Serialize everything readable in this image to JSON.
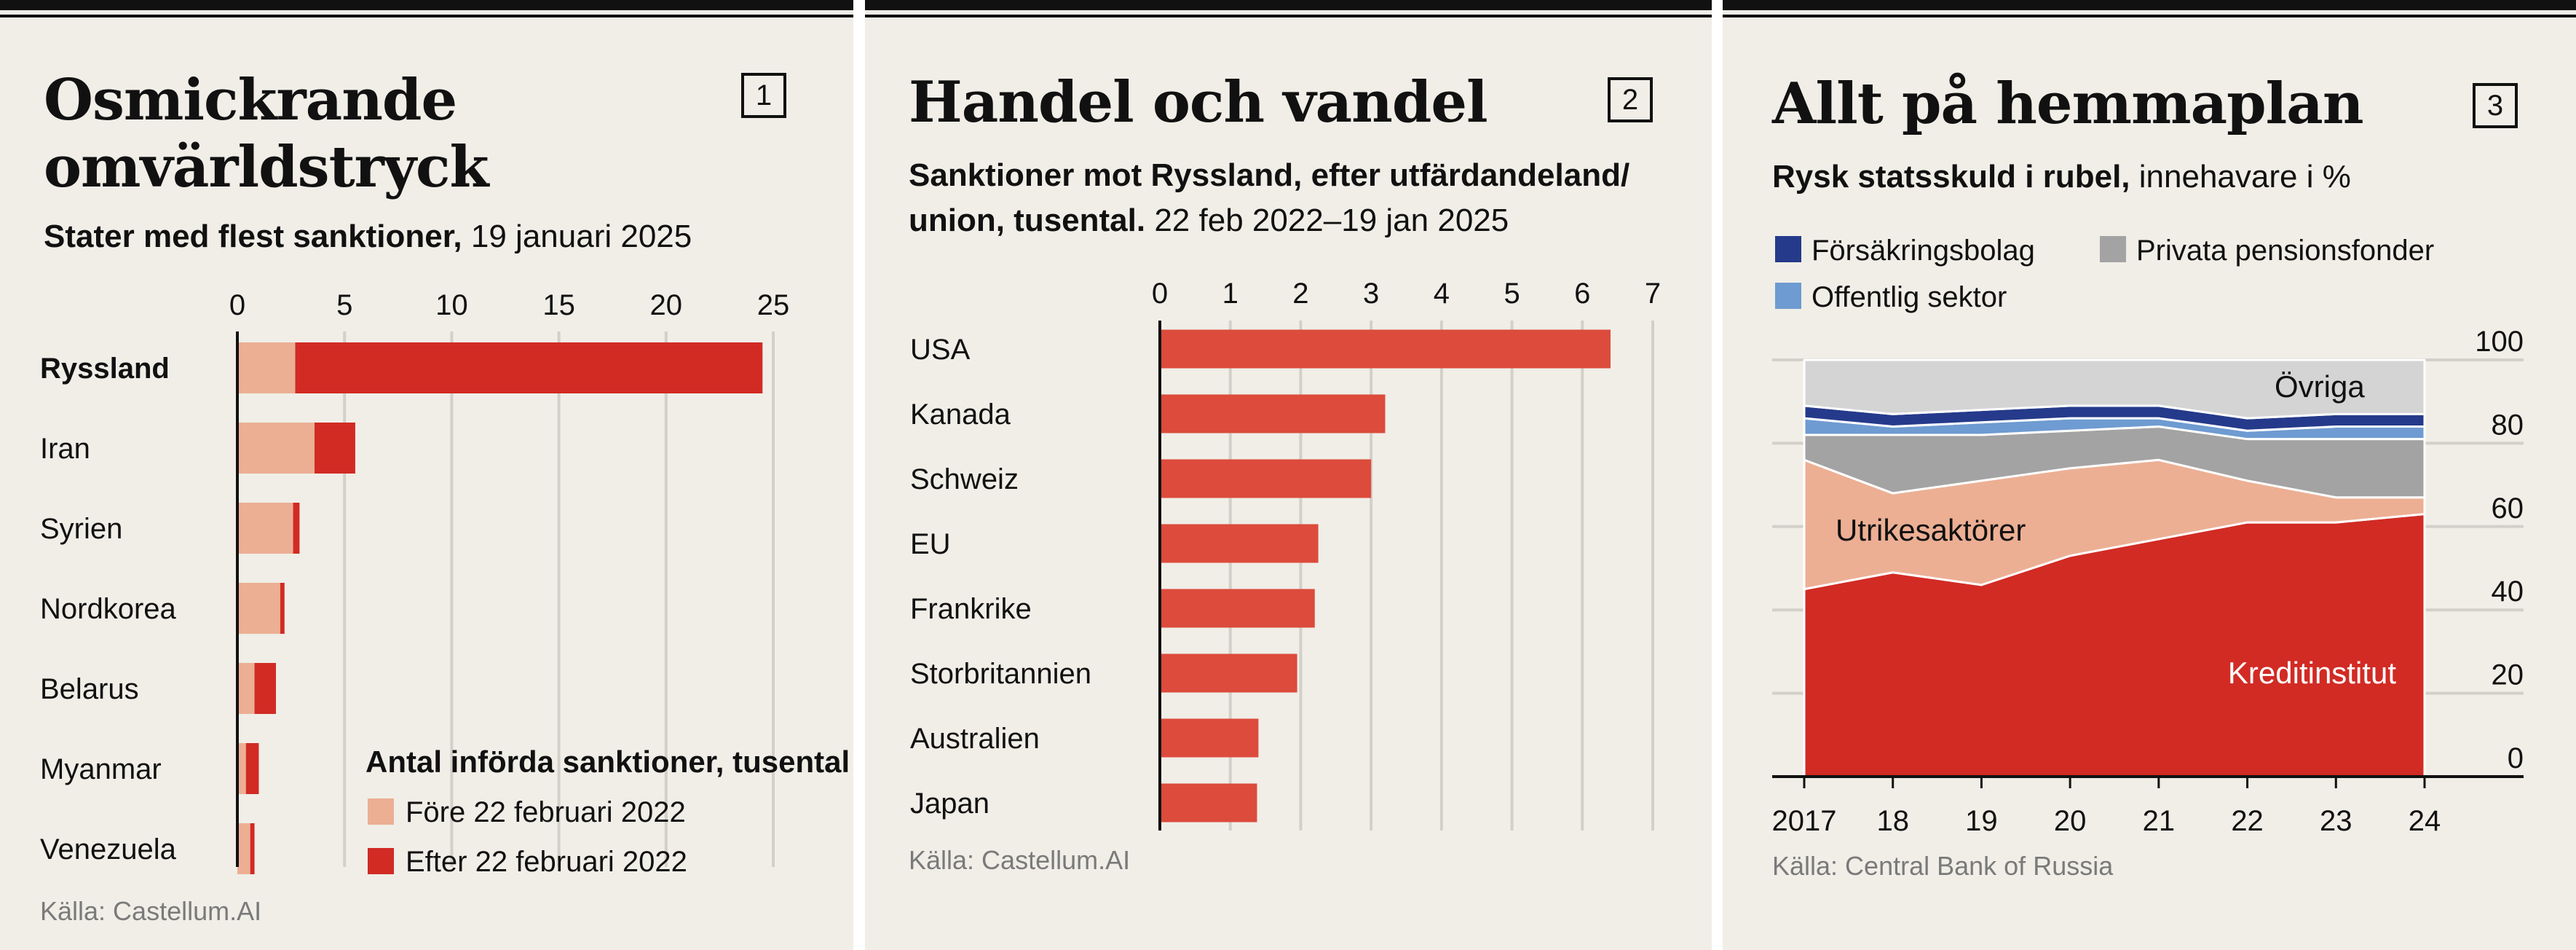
{
  "panel1": {
    "title_lines": [
      "Osmickrande",
      "omvärldstryck"
    ],
    "number": "1",
    "subtitle_bold": "Stater med flest sanktioner,",
    "subtitle_rest": " 19 januari 2025",
    "source": "Källa: Castellum.AI"
  },
  "panel2": {
    "title": "Handel och vandel",
    "number": "2",
    "subtitle_line1": "Sanktioner mot Ryssland, efter utfärdandeland/",
    "subtitle_line2_bold": "union, tusental.",
    "subtitle_line2_rest": " 22 feb 2022–19 jan 2025",
    "source": "Källa: Castellum.AI"
  },
  "panel3": {
    "title": "Allt på hemmaplan",
    "number": "3",
    "subtitle_bold": "Rysk statsskuld i rubel,",
    "subtitle_rest": " innehavare i %",
    "source": "Källa: Central Bank of Russia"
  },
  "colors": {
    "background": "#f0eee7",
    "grid": "#d2d0c9",
    "before": "#ecaf94",
    "after": "#d12b24",
    "bar2": "#dc4b3b",
    "forsakring": "#253a8b",
    "offentlig": "#6e9bd1",
    "pension": "#a3a3a3",
    "ovriga": "#d4d4d4",
    "utrikes": "#ecaf94",
    "kredit": "#d12b24"
  },
  "chart_data": [
    {
      "type": "bar",
      "orientation": "horizontal",
      "stacked": true,
      "categories": [
        "Ryssland",
        "Iran",
        "Syrien",
        "Nordkorea",
        "Belarus",
        "Myanmar",
        "Venezuela"
      ],
      "highlight": "Ryssland",
      "series": [
        {
          "name": "Före 22 februari 2022",
          "values": [
            2.7,
            3.6,
            2.6,
            2.0,
            0.8,
            0.4,
            0.6
          ]
        },
        {
          "name": "Efter 22 februari 2022",
          "values": [
            21.8,
            1.9,
            0.3,
            0.2,
            1.0,
            0.6,
            0.2
          ]
        }
      ],
      "xlim": [
        0,
        25
      ],
      "xticks": [
        "0",
        "5",
        "10",
        "15",
        "20",
        "25"
      ],
      "legend_title": "Antal införda sanktioner, tusental",
      "legend_position": "bottom-right",
      "grid": true
    },
    {
      "type": "bar",
      "orientation": "horizontal",
      "categories": [
        "USA",
        "Kanada",
        "Schweiz",
        "EU",
        "Frankrike",
        "Storbritannien",
        "Australien",
        "Japan"
      ],
      "values": [
        6.4,
        3.2,
        3.0,
        2.25,
        2.2,
        1.95,
        1.4,
        1.38
      ],
      "xlim": [
        0,
        7
      ],
      "xticks": [
        "0",
        "1",
        "2",
        "3",
        "4",
        "5",
        "6",
        "7"
      ],
      "grid": true
    },
    {
      "type": "area",
      "stacked": true,
      "x": [
        "2017",
        "18",
        "19",
        "20",
        "21",
        "22",
        "23",
        "24"
      ],
      "series": [
        {
          "name": "Kreditinstitut",
          "values": [
            45,
            49,
            46,
            53,
            57,
            61,
            61,
            63
          ]
        },
        {
          "name": "Utrikesaktörer",
          "values": [
            31,
            19,
            25,
            21,
            19,
            10,
            6,
            4
          ]
        },
        {
          "name": "Privata pensionsfonder",
          "values": [
            6,
            14,
            11,
            9,
            8,
            10,
            14,
            14
          ]
        },
        {
          "name": "Offentlig sektor",
          "values": [
            4,
            2,
            3,
            3,
            2,
            2,
            3,
            3
          ]
        },
        {
          "name": "Försäkringsbolag",
          "values": [
            3,
            3,
            3,
            3,
            3,
            3,
            3,
            3
          ]
        },
        {
          "name": "Övriga",
          "values": [
            11,
            13,
            12,
            11,
            11,
            14,
            13,
            13
          ]
        }
      ],
      "ylim": [
        0,
        100
      ],
      "yticks": [
        "0",
        "20",
        "40",
        "60",
        "80",
        "100"
      ],
      "legend": [
        "Försäkringsbolag",
        "Privata pensionsfonder",
        "Offentlig sektor"
      ],
      "legend_position": "top",
      "annotations": [
        "Övriga",
        "Utrikesaktörer",
        "Kreditinstitut"
      ],
      "grid": true
    }
  ]
}
